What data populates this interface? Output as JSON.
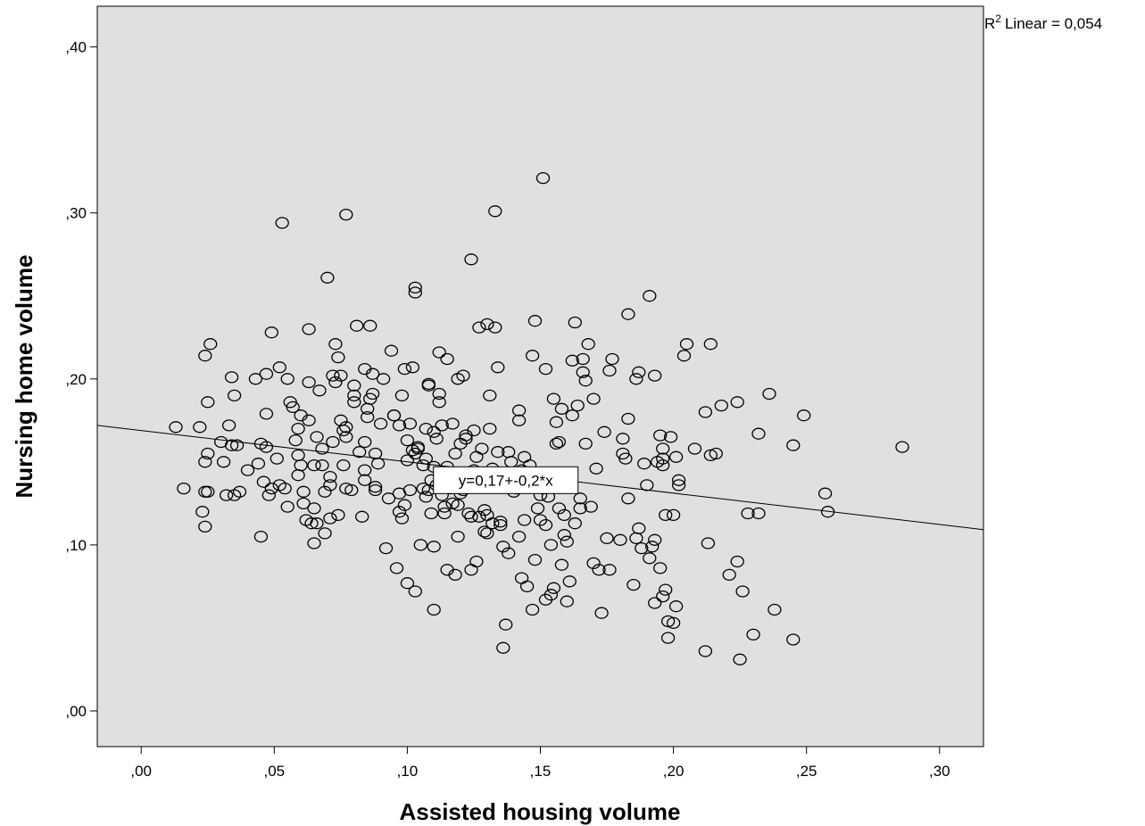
{
  "chart_data": {
    "type": "scatter",
    "xlabel": "Assisted housing volume",
    "ylabel": "Nursing home volume",
    "xlim": [
      -0.0165,
      0.3165
    ],
    "ylim": [
      -0.0215,
      0.4245
    ],
    "xticks": [
      0.0,
      0.05,
      0.1,
      0.15,
      0.2,
      0.25,
      0.3
    ],
    "xtick_labels": [
      ",00",
      ",05",
      ",10",
      ",15",
      ",20",
      ",25",
      ",30"
    ],
    "yticks": [
      0.0,
      0.1,
      0.2,
      0.3,
      0.4
    ],
    "ytick_labels": [
      ",00",
      ",10",
      ",20",
      ",30",
      ",40"
    ],
    "grid": false,
    "r2_label": "Linear = 0,054",
    "r2_prefix": "R",
    "r2_sup": "2",
    "fit_line": {
      "intercept": 0.1689,
      "slope": -0.1885,
      "equation_label": "y=0,17+-0,2*x",
      "label_at_x": 0.137,
      "label_at_y": 0.139
    },
    "colors": {
      "plot_bg": "#e0e0e0",
      "marker": "#000000",
      "line": "#000000"
    },
    "points": [
      [
        0.013,
        0.171
      ],
      [
        0.016,
        0.134
      ],
      [
        0.022,
        0.171
      ],
      [
        0.023,
        0.12
      ],
      [
        0.024,
        0.111
      ],
      [
        0.024,
        0.132
      ],
      [
        0.025,
        0.132
      ],
      [
        0.024,
        0.15
      ],
      [
        0.025,
        0.155
      ],
      [
        0.025,
        0.186
      ],
      [
        0.024,
        0.214
      ],
      [
        0.026,
        0.221
      ],
      [
        0.03,
        0.162
      ],
      [
        0.031,
        0.15
      ],
      [
        0.032,
        0.13
      ],
      [
        0.033,
        0.172
      ],
      [
        0.034,
        0.201
      ],
      [
        0.034,
        0.16
      ],
      [
        0.035,
        0.19
      ],
      [
        0.035,
        0.13
      ],
      [
        0.036,
        0.16
      ],
      [
        0.037,
        0.132
      ],
      [
        0.04,
        0.145
      ],
      [
        0.043,
        0.2
      ],
      [
        0.044,
        0.149
      ],
      [
        0.045,
        0.105
      ],
      [
        0.045,
        0.161
      ],
      [
        0.046,
        0.138
      ],
      [
        0.047,
        0.159
      ],
      [
        0.047,
        0.179
      ],
      [
        0.047,
        0.203
      ],
      [
        0.048,
        0.13
      ],
      [
        0.049,
        0.134
      ],
      [
        0.049,
        0.228
      ],
      [
        0.051,
        0.152
      ],
      [
        0.052,
        0.207
      ],
      [
        0.052,
        0.136
      ],
      [
        0.053,
        0.294
      ],
      [
        0.054,
        0.134
      ],
      [
        0.055,
        0.123
      ],
      [
        0.055,
        0.2
      ],
      [
        0.056,
        0.186
      ],
      [
        0.057,
        0.183
      ],
      [
        0.058,
        0.163
      ],
      [
        0.059,
        0.17
      ],
      [
        0.059,
        0.154
      ],
      [
        0.059,
        0.142
      ],
      [
        0.06,
        0.148
      ],
      [
        0.06,
        0.178
      ],
      [
        0.061,
        0.125
      ],
      [
        0.061,
        0.132
      ],
      [
        0.062,
        0.115
      ],
      [
        0.063,
        0.175
      ],
      [
        0.063,
        0.198
      ],
      [
        0.063,
        0.23
      ],
      [
        0.064,
        0.113
      ],
      [
        0.065,
        0.122
      ],
      [
        0.065,
        0.148
      ],
      [
        0.065,
        0.101
      ],
      [
        0.066,
        0.113
      ],
      [
        0.066,
        0.165
      ],
      [
        0.067,
        0.193
      ],
      [
        0.068,
        0.158
      ],
      [
        0.068,
        0.148
      ],
      [
        0.069,
        0.132
      ],
      [
        0.069,
        0.107
      ],
      [
        0.07,
        0.261
      ],
      [
        0.071,
        0.141
      ],
      [
        0.071,
        0.116
      ],
      [
        0.071,
        0.136
      ],
      [
        0.072,
        0.162
      ],
      [
        0.072,
        0.202
      ],
      [
        0.073,
        0.221
      ],
      [
        0.073,
        0.198
      ],
      [
        0.074,
        0.213
      ],
      [
        0.074,
        0.118
      ],
      [
        0.075,
        0.175
      ],
      [
        0.075,
        0.202
      ],
      [
        0.076,
        0.148
      ],
      [
        0.076,
        0.169
      ],
      [
        0.077,
        0.165
      ],
      [
        0.077,
        0.171
      ],
      [
        0.077,
        0.134
      ],
      [
        0.077,
        0.299
      ],
      [
        0.079,
        0.133
      ],
      [
        0.08,
        0.186
      ],
      [
        0.08,
        0.19
      ],
      [
        0.08,
        0.196
      ],
      [
        0.081,
        0.232
      ],
      [
        0.082,
        0.156
      ],
      [
        0.083,
        0.117
      ],
      [
        0.084,
        0.139
      ],
      [
        0.084,
        0.145
      ],
      [
        0.084,
        0.162
      ],
      [
        0.084,
        0.206
      ],
      [
        0.085,
        0.177
      ],
      [
        0.085,
        0.182
      ],
      [
        0.086,
        0.188
      ],
      [
        0.086,
        0.232
      ],
      [
        0.087,
        0.191
      ],
      [
        0.087,
        0.203
      ],
      [
        0.088,
        0.155
      ],
      [
        0.088,
        0.135
      ],
      [
        0.088,
        0.133
      ],
      [
        0.089,
        0.149
      ],
      [
        0.09,
        0.173
      ],
      [
        0.091,
        0.2
      ],
      [
        0.092,
        0.098
      ],
      [
        0.093,
        0.128
      ],
      [
        0.094,
        0.217
      ],
      [
        0.095,
        0.178
      ],
      [
        0.095,
        0.178
      ],
      [
        0.096,
        0.086
      ],
      [
        0.097,
        0.131
      ],
      [
        0.097,
        0.12
      ],
      [
        0.097,
        0.172
      ],
      [
        0.098,
        0.19
      ],
      [
        0.098,
        0.116
      ],
      [
        0.099,
        0.206
      ],
      [
        0.099,
        0.124
      ],
      [
        0.1,
        0.077
      ],
      [
        0.1,
        0.163
      ],
      [
        0.1,
        0.151
      ],
      [
        0.101,
        0.133
      ],
      [
        0.101,
        0.173
      ],
      [
        0.102,
        0.207
      ],
      [
        0.102,
        0.157
      ],
      [
        0.103,
        0.155
      ],
      [
        0.103,
        0.252
      ],
      [
        0.103,
        0.255
      ],
      [
        0.103,
        0.072
      ],
      [
        0.104,
        0.158
      ],
      [
        0.104,
        0.159
      ],
      [
        0.105,
        0.1
      ],
      [
        0.106,
        0.148
      ],
      [
        0.106,
        0.134
      ],
      [
        0.107,
        0.129
      ],
      [
        0.107,
        0.152
      ],
      [
        0.107,
        0.17
      ],
      [
        0.108,
        0.196
      ],
      [
        0.108,
        0.133
      ],
      [
        0.108,
        0.197
      ],
      [
        0.109,
        0.139
      ],
      [
        0.109,
        0.119
      ],
      [
        0.11,
        0.147
      ],
      [
        0.11,
        0.099
      ],
      [
        0.11,
        0.061
      ],
      [
        0.11,
        0.168
      ],
      [
        0.111,
        0.164
      ],
      [
        0.111,
        0.136
      ],
      [
        0.112,
        0.191
      ],
      [
        0.112,
        0.186
      ],
      [
        0.112,
        0.216
      ],
      [
        0.113,
        0.13
      ],
      [
        0.113,
        0.172
      ],
      [
        0.114,
        0.119
      ],
      [
        0.114,
        0.143
      ],
      [
        0.114,
        0.123
      ],
      [
        0.115,
        0.147
      ],
      [
        0.115,
        0.212
      ],
      [
        0.115,
        0.085
      ],
      [
        0.116,
        0.134
      ],
      [
        0.117,
        0.125
      ],
      [
        0.117,
        0.173
      ],
      [
        0.118,
        0.155
      ],
      [
        0.118,
        0.082
      ],
      [
        0.119,
        0.2
      ],
      [
        0.119,
        0.124
      ],
      [
        0.119,
        0.105
      ],
      [
        0.12,
        0.161
      ],
      [
        0.12,
        0.131
      ],
      [
        0.121,
        0.202
      ],
      [
        0.121,
        0.133
      ],
      [
        0.122,
        0.166
      ],
      [
        0.122,
        0.164
      ],
      [
        0.123,
        0.137
      ],
      [
        0.123,
        0.119
      ],
      [
        0.124,
        0.272
      ],
      [
        0.124,
        0.117
      ],
      [
        0.124,
        0.085
      ],
      [
        0.125,
        0.145
      ],
      [
        0.125,
        0.169
      ],
      [
        0.126,
        0.153
      ],
      [
        0.126,
        0.09
      ],
      [
        0.127,
        0.231
      ],
      [
        0.127,
        0.117
      ],
      [
        0.128,
        0.158
      ],
      [
        0.128,
        0.142
      ],
      [
        0.129,
        0.121
      ],
      [
        0.129,
        0.108
      ],
      [
        0.13,
        0.118
      ],
      [
        0.13,
        0.107
      ],
      [
        0.13,
        0.233
      ],
      [
        0.131,
        0.19
      ],
      [
        0.131,
        0.17
      ],
      [
        0.132,
        0.146
      ],
      [
        0.132,
        0.113
      ],
      [
        0.133,
        0.301
      ],
      [
        0.133,
        0.231
      ],
      [
        0.134,
        0.207
      ],
      [
        0.134,
        0.156
      ],
      [
        0.135,
        0.112
      ],
      [
        0.135,
        0.114
      ],
      [
        0.136,
        0.099
      ],
      [
        0.136,
        0.038
      ],
      [
        0.137,
        0.052
      ],
      [
        0.138,
        0.095
      ],
      [
        0.138,
        0.156
      ],
      [
        0.139,
        0.15
      ],
      [
        0.14,
        0.132
      ],
      [
        0.141,
        0.134
      ],
      [
        0.142,
        0.181
      ],
      [
        0.142,
        0.175
      ],
      [
        0.142,
        0.105
      ],
      [
        0.143,
        0.08
      ],
      [
        0.143,
        0.145
      ],
      [
        0.144,
        0.153
      ],
      [
        0.144,
        0.115
      ],
      [
        0.145,
        0.075
      ],
      [
        0.146,
        0.148
      ],
      [
        0.147,
        0.214
      ],
      [
        0.147,
        0.061
      ],
      [
        0.148,
        0.235
      ],
      [
        0.148,
        0.091
      ],
      [
        0.149,
        0.122
      ],
      [
        0.149,
        0.14
      ],
      [
        0.15,
        0.115
      ],
      [
        0.15,
        0.13
      ],
      [
        0.151,
        0.321
      ],
      [
        0.151,
        0.134
      ],
      [
        0.152,
        0.206
      ],
      [
        0.152,
        0.067
      ],
      [
        0.152,
        0.112
      ],
      [
        0.153,
        0.129
      ],
      [
        0.154,
        0.1
      ],
      [
        0.154,
        0.07
      ],
      [
        0.155,
        0.188
      ],
      [
        0.155,
        0.074
      ],
      [
        0.156,
        0.174
      ],
      [
        0.156,
        0.161
      ],
      [
        0.157,
        0.162
      ],
      [
        0.157,
        0.122
      ],
      [
        0.158,
        0.088
      ],
      [
        0.158,
        0.182
      ],
      [
        0.159,
        0.106
      ],
      [
        0.159,
        0.118
      ],
      [
        0.16,
        0.102
      ],
      [
        0.16,
        0.066
      ],
      [
        0.161,
        0.078
      ],
      [
        0.162,
        0.211
      ],
      [
        0.162,
        0.178
      ],
      [
        0.163,
        0.234
      ],
      [
        0.163,
        0.113
      ],
      [
        0.164,
        0.184
      ],
      [
        0.165,
        0.128
      ],
      [
        0.165,
        0.122
      ],
      [
        0.166,
        0.204
      ],
      [
        0.166,
        0.212
      ],
      [
        0.167,
        0.199
      ],
      [
        0.167,
        0.161
      ],
      [
        0.168,
        0.221
      ],
      [
        0.169,
        0.123
      ],
      [
        0.17,
        0.188
      ],
      [
        0.17,
        0.089
      ],
      [
        0.171,
        0.146
      ],
      [
        0.172,
        0.085
      ],
      [
        0.173,
        0.059
      ],
      [
        0.174,
        0.168
      ],
      [
        0.175,
        0.104
      ],
      [
        0.176,
        0.085
      ],
      [
        0.176,
        0.205
      ],
      [
        0.177,
        0.212
      ],
      [
        0.18,
        0.103
      ],
      [
        0.181,
        0.164
      ],
      [
        0.181,
        0.155
      ],
      [
        0.182,
        0.152
      ],
      [
        0.183,
        0.176
      ],
      [
        0.183,
        0.239
      ],
      [
        0.183,
        0.128
      ],
      [
        0.185,
        0.076
      ],
      [
        0.186,
        0.2
      ],
      [
        0.186,
        0.104
      ],
      [
        0.187,
        0.11
      ],
      [
        0.187,
        0.204
      ],
      [
        0.188,
        0.098
      ],
      [
        0.189,
        0.149
      ],
      [
        0.19,
        0.136
      ],
      [
        0.191,
        0.092
      ],
      [
        0.191,
        0.25
      ],
      [
        0.192,
        0.099
      ],
      [
        0.193,
        0.065
      ],
      [
        0.193,
        0.103
      ],
      [
        0.193,
        0.202
      ],
      [
        0.194,
        0.15
      ],
      [
        0.195,
        0.086
      ],
      [
        0.195,
        0.166
      ],
      [
        0.196,
        0.069
      ],
      [
        0.196,
        0.152
      ],
      [
        0.196,
        0.148
      ],
      [
        0.196,
        0.158
      ],
      [
        0.197,
        0.073
      ],
      [
        0.197,
        0.118
      ],
      [
        0.198,
        0.054
      ],
      [
        0.198,
        0.044
      ],
      [
        0.199,
        0.165
      ],
      [
        0.2,
        0.118
      ],
      [
        0.2,
        0.053
      ],
      [
        0.201,
        0.063
      ],
      [
        0.201,
        0.153
      ],
      [
        0.202,
        0.139
      ],
      [
        0.202,
        0.136
      ],
      [
        0.204,
        0.214
      ],
      [
        0.205,
        0.221
      ],
      [
        0.208,
        0.158
      ],
      [
        0.212,
        0.036
      ],
      [
        0.212,
        0.18
      ],
      [
        0.213,
        0.101
      ],
      [
        0.214,
        0.154
      ],
      [
        0.214,
        0.221
      ],
      [
        0.216,
        0.155
      ],
      [
        0.218,
        0.184
      ],
      [
        0.221,
        0.082
      ],
      [
        0.224,
        0.09
      ],
      [
        0.224,
        0.186
      ],
      [
        0.225,
        0.031
      ],
      [
        0.226,
        0.072
      ],
      [
        0.228,
        0.119
      ],
      [
        0.23,
        0.046
      ],
      [
        0.232,
        0.167
      ],
      [
        0.232,
        0.119
      ],
      [
        0.236,
        0.191
      ],
      [
        0.238,
        0.061
      ],
      [
        0.245,
        0.16
      ],
      [
        0.245,
        0.043
      ],
      [
        0.249,
        0.178
      ],
      [
        0.257,
        0.131
      ],
      [
        0.258,
        0.12
      ],
      [
        0.286,
        0.159
      ]
    ]
  }
}
